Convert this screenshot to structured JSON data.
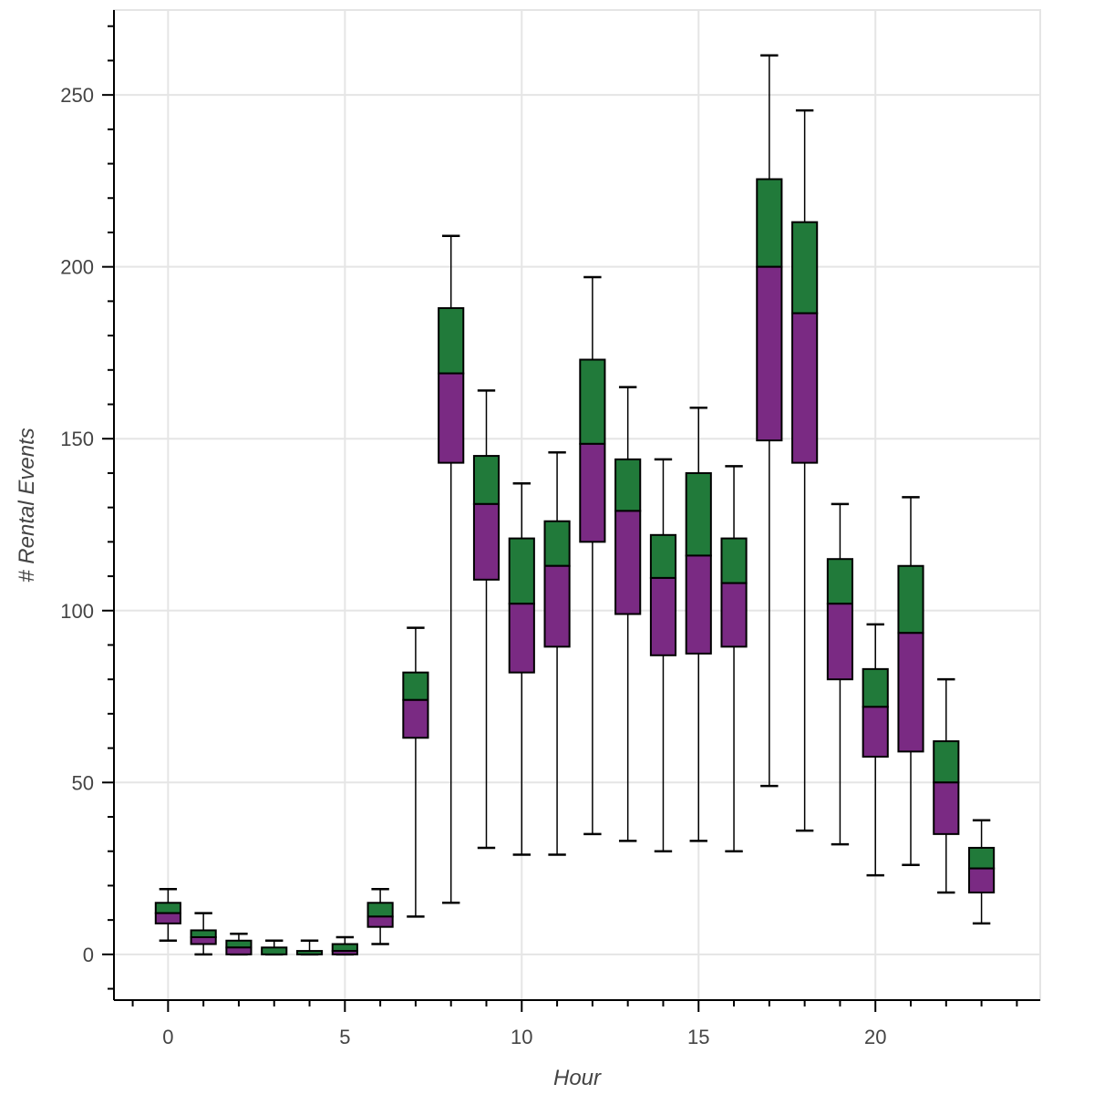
{
  "chart_data": {
    "type": "box",
    "title": "",
    "xlabel": "Hour",
    "ylabel": "# Rental Events",
    "xlim": [
      -1.53,
      24.66
    ],
    "ylim": [
      -13.3,
      274.7
    ],
    "grid": true,
    "x_major_ticks": [
      0,
      5,
      10,
      15,
      20
    ],
    "x_tick_labels": [
      "0",
      "5",
      "10",
      "15",
      "20"
    ],
    "x_minor_step": 1,
    "y_major_ticks": [
      0,
      50,
      100,
      150,
      200,
      250
    ],
    "y_tick_labels": [
      "0",
      "50",
      "100",
      "150",
      "200",
      "250"
    ],
    "y_minor_step": 10,
    "colors": {
      "upper_box": "#217a3a",
      "lower_box": "#7a2a83",
      "outline": "#000000",
      "grid": "#e5e5e5",
      "axis_text": "#444444"
    },
    "series": [
      {
        "name": "boxes",
        "x": [
          0,
          1,
          2,
          3,
          4,
          5,
          6,
          7,
          8,
          9,
          10,
          11,
          12,
          13,
          14,
          15,
          16,
          17,
          18,
          19,
          20,
          21,
          22,
          23
        ],
        "lower": [
          4,
          0,
          0,
          0,
          0,
          0,
          3,
          11,
          15,
          31,
          29,
          29,
          35,
          33,
          30,
          33,
          30,
          49,
          36,
          32,
          23,
          26,
          18,
          9
        ],
        "q1": [
          9,
          3,
          0,
          0,
          0,
          0,
          8,
          63,
          143,
          109,
          82,
          89.5,
          120,
          99,
          87,
          87.5,
          89.5,
          149.5,
          143,
          80,
          57.5,
          59,
          35,
          18
        ],
        "median": [
          12,
          5,
          2,
          0,
          0,
          1,
          11,
          74,
          169,
          131,
          102,
          113,
          148.5,
          129,
          109.5,
          116,
          108,
          200,
          186.5,
          102,
          72,
          93.5,
          50,
          25
        ],
        "q3": [
          15,
          7,
          4,
          2,
          1,
          3,
          15,
          82,
          188,
          145,
          121,
          126,
          173,
          144,
          122,
          140,
          121,
          225.5,
          213,
          115,
          83,
          113,
          62,
          31
        ],
        "upper": [
          19,
          12,
          6,
          4,
          4,
          5,
          19,
          95,
          209,
          164,
          137,
          146,
          197,
          165,
          144,
          159,
          142,
          261.5,
          245.5,
          131,
          96,
          133,
          80,
          39
        ]
      }
    ]
  }
}
